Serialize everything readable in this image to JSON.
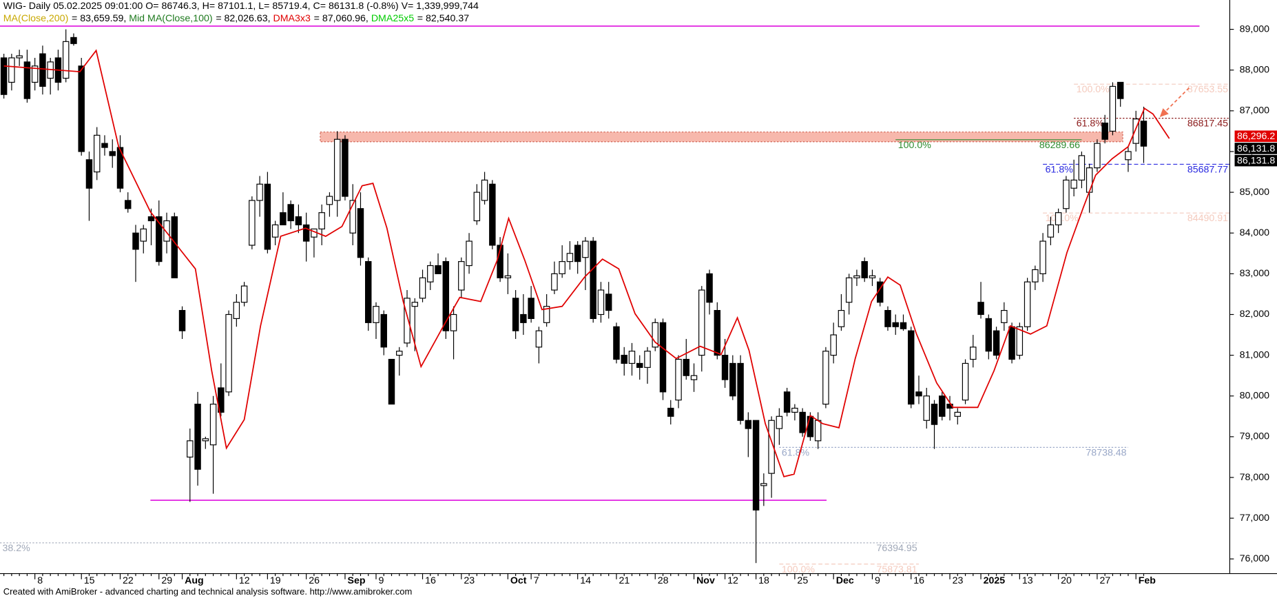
{
  "chart_data": {
    "type": "candlestick",
    "title": "WIG- Daily 05.02.2025 09:01:00 O= 86746.3, H= 87101.1, L= 85719.4, C= 86131.8 (-0.8%) V= 1,339,999,744",
    "indicators": [
      {
        "name": "MA(Close,200)",
        "text": "= 83,659.59,",
        "color": "#c8a800"
      },
      {
        "name": "Mid MA(Close,100)",
        "text": "= 82,026.63,",
        "color": "#1f7a1f"
      },
      {
        "name": "DMA3x3",
        "text": "= 87,060.96,",
        "color": "#e00000"
      },
      {
        "name": "DMA25x5",
        "text": "= 82,540.37",
        "color": "#00cc00"
      }
    ],
    "footer": "Created with AmiBroker - advanced charting and technical analysis software. http://www.amibroker.com",
    "categories": [
      null,
      null,
      null,
      null,
      "8",
      null,
      null,
      null,
      null,
      null,
      "15",
      null,
      null,
      null,
      null,
      "22",
      null,
      null,
      null,
      null,
      "29",
      null,
      null,
      "Aug",
      null,
      null,
      null,
      null,
      null,
      null,
      "12",
      null,
      null,
      null,
      "19",
      null,
      null,
      null,
      null,
      "26",
      null,
      null,
      null,
      null,
      "Sep",
      null,
      null,
      null,
      "9",
      null,
      null,
      null,
      null,
      null,
      "16",
      null,
      null,
      null,
      null,
      "23",
      null,
      null,
      null,
      null,
      null,
      "Oct",
      null,
      null,
      "7",
      null,
      null,
      null,
      null,
      null,
      "14",
      null,
      null,
      null,
      null,
      "21",
      null,
      null,
      null,
      null,
      "28",
      null,
      null,
      null,
      null,
      "Nov",
      null,
      null,
      null,
      "12",
      null,
      null,
      null,
      "18",
      null,
      null,
      null,
      null,
      "25",
      null,
      null,
      null,
      null,
      "Dec",
      null,
      null,
      null,
      null,
      "9",
      null,
      null,
      null,
      null,
      "16",
      null,
      null,
      null,
      null,
      "23",
      null,
      null,
      null,
      "2025",
      null,
      null,
      null,
      null,
      "13",
      null,
      null,
      null,
      null,
      "20",
      null,
      null,
      null,
      null,
      "27",
      null,
      null,
      null,
      null,
      "Feb",
      null
    ],
    "ohlc": [
      [
        88300,
        88400,
        87300,
        87400
      ],
      [
        87700,
        88400,
        87500,
        88300
      ],
      [
        88300,
        88500,
        88100,
        88350
      ],
      [
        88200,
        88500,
        87200,
        87300
      ],
      [
        87700,
        88300,
        87500,
        88100
      ],
      [
        88400,
        88600,
        87400,
        87600
      ],
      [
        87800,
        88300,
        87400,
        88200
      ],
      [
        88300,
        88500,
        87500,
        87700
      ],
      [
        87800,
        89000,
        87700,
        88700
      ],
      [
        88800,
        88900,
        88600,
        88650
      ],
      [
        88100,
        88300,
        85900,
        86000
      ],
      [
        85800,
        86000,
        84300,
        85100
      ],
      [
        85500,
        86600,
        85300,
        86400
      ],
      [
        86200,
        86400,
        85900,
        86100
      ],
      [
        86000,
        86300,
        85600,
        85900
      ],
      [
        86100,
        86400,
        85000,
        85100
      ],
      [
        84800,
        85000,
        84500,
        84600
      ],
      [
        84000,
        84200,
        82800,
        83600
      ],
      [
        83800,
        84200,
        83500,
        84100
      ],
      [
        84400,
        84600,
        83700,
        84300
      ],
      [
        84400,
        84800,
        83200,
        83300
      ],
      [
        83800,
        84500,
        83500,
        84300
      ],
      [
        84400,
        84500,
        82900,
        82900
      ],
      [
        82100,
        82200,
        81400,
        81600
      ],
      [
        78500,
        79200,
        77400,
        78900
      ],
      [
        79800,
        80100,
        77800,
        78200
      ],
      [
        78900,
        79000,
        78700,
        78950
      ],
      [
        78800,
        80000,
        77600,
        79800
      ],
      [
        80200,
        80800,
        79500,
        79600
      ],
      [
        80100,
        82100,
        80000,
        82000
      ],
      [
        81900,
        82500,
        81700,
        82300
      ],
      [
        82300,
        82800,
        82200,
        82700
      ],
      [
        83700,
        84900,
        83600,
        84800
      ],
      [
        84800,
        85400,
        84400,
        85200
      ],
      [
        85200,
        85500,
        83500,
        83600
      ],
      [
        83900,
        84300,
        83700,
        84200
      ],
      [
        84500,
        85000,
        84200,
        84200
      ],
      [
        84700,
        84800,
        84100,
        84300
      ],
      [
        84400,
        84700,
        84000,
        84200
      ],
      [
        84200,
        84500,
        83300,
        83800
      ],
      [
        83900,
        84100,
        83400,
        84100
      ],
      [
        84100,
        84700,
        83700,
        84500
      ],
      [
        84700,
        85000,
        84400,
        84900
      ],
      [
        84800,
        86500,
        84400,
        86300
      ],
      [
        86300,
        86400,
        84800,
        84900
      ],
      [
        84000,
        85200,
        83700,
        84800
      ],
      [
        84600,
        85000,
        83200,
        83400
      ],
      [
        83300,
        83400,
        81600,
        81800
      ],
      [
        81800,
        82300,
        81400,
        82200
      ],
      [
        82000,
        82100,
        81000,
        81200
      ],
      [
        80900,
        80900,
        79800,
        79800
      ],
      [
        81000,
        81200,
        80500,
        81100
      ],
      [
        81300,
        82600,
        81200,
        82400
      ],
      [
        82200,
        82400,
        81100,
        82300
      ],
      [
        82400,
        83100,
        82300,
        82900
      ],
      [
        82800,
        83300,
        82600,
        83200
      ],
      [
        83200,
        83500,
        83000,
        83000
      ],
      [
        83300,
        83400,
        81400,
        81600
      ],
      [
        81600,
        82200,
        80900,
        82000
      ],
      [
        82600,
        83400,
        82400,
        83300
      ],
      [
        83200,
        84000,
        83000,
        83800
      ],
      [
        84300,
        85200,
        84200,
        85000
      ],
      [
        84800,
        85500,
        84700,
        85300
      ],
      [
        85200,
        85300,
        83600,
        83700
      ],
      [
        83700,
        83900,
        82800,
        82900
      ],
      [
        82900,
        83500,
        82500,
        82950
      ],
      [
        82400,
        82600,
        81400,
        81600
      ],
      [
        82000,
        82500,
        81500,
        81800
      ],
      [
        82400,
        82700,
        81800,
        81900
      ],
      [
        81200,
        81700,
        80800,
        81600
      ],
      [
        81800,
        82500,
        81700,
        82200
      ],
      [
        82600,
        83300,
        82500,
        83000
      ],
      [
        83000,
        83700,
        82900,
        83300
      ],
      [
        83300,
        83800,
        83100,
        83500
      ],
      [
        83700,
        83800,
        83000,
        83300
      ],
      [
        83400,
        83900,
        82600,
        83800
      ],
      [
        83800,
        83900,
        81800,
        81900
      ],
      [
        82000,
        82800,
        81800,
        82600
      ],
      [
        82500,
        82800,
        81900,
        82100
      ],
      [
        81700,
        81800,
        80800,
        80900
      ],
      [
        81000,
        81200,
        80500,
        80800
      ],
      [
        80800,
        81300,
        80500,
        81100
      ],
      [
        80800,
        81000,
        80400,
        80700
      ],
      [
        80700,
        81200,
        80300,
        81100
      ],
      [
        81200,
        81900,
        81100,
        81800
      ],
      [
        81800,
        81900,
        79900,
        80100
      ],
      [
        79700,
        79900,
        79300,
        79500
      ],
      [
        79900,
        81000,
        79700,
        80900
      ],
      [
        80900,
        81400,
        80400,
        80500
      ],
      [
        80400,
        80800,
        80100,
        80500
      ],
      [
        81000,
        82700,
        80600,
        82600
      ],
      [
        83000,
        83100,
        82000,
        82300
      ],
      [
        82100,
        82300,
        80900,
        81000
      ],
      [
        81000,
        81400,
        80200,
        80400
      ],
      [
        80800,
        81000,
        79900,
        80000
      ],
      [
        80800,
        81000,
        79300,
        79400
      ],
      [
        79400,
        79600,
        78500,
        79200
      ],
      [
        79400,
        79400,
        75900,
        77200
      ],
      [
        77800,
        78100,
        77300,
        77850
      ],
      [
        78100,
        79500,
        77500,
        79400
      ],
      [
        79200,
        79700,
        78800,
        79500
      ],
      [
        80100,
        80200,
        79500,
        79600
      ],
      [
        79600,
        79800,
        79400,
        79700
      ],
      [
        79600,
        79700,
        79000,
        79100
      ],
      [
        79500,
        79600,
        78900,
        79000
      ],
      [
        78900,
        79600,
        78700,
        79400
      ],
      [
        79800,
        81200,
        79700,
        81100
      ],
      [
        81000,
        81800,
        80800,
        81500
      ],
      [
        81700,
        82500,
        81600,
        82100
      ],
      [
        82300,
        83000,
        82000,
        82900
      ],
      [
        82900,
        83100,
        82700,
        82950
      ],
      [
        83300,
        83400,
        82800,
        82900
      ],
      [
        82900,
        83100,
        82700,
        82950
      ],
      [
        82800,
        82900,
        82200,
        82300
      ],
      [
        82100,
        82200,
        81600,
        81700
      ],
      [
        81800,
        82000,
        81500,
        81700
      ],
      [
        81800,
        82000,
        81600,
        81650
      ],
      [
        81600,
        81700,
        79700,
        79800
      ],
      [
        80100,
        80500,
        79800,
        80000
      ],
      [
        79400,
        80200,
        79200,
        80000
      ],
      [
        79800,
        79900,
        78700,
        79300
      ],
      [
        80000,
        80100,
        79400,
        79500
      ],
      [
        79800,
        80000,
        79400,
        79700
      ],
      [
        79500,
        79700,
        79300,
        79600
      ],
      [
        79900,
        80900,
        79800,
        80800
      ],
      [
        80900,
        81500,
        80700,
        81200
      ],
      [
        82300,
        82800,
        81900,
        82000
      ],
      [
        81900,
        82000,
        80900,
        81100
      ],
      [
        81600,
        81700,
        80900,
        81000
      ],
      [
        81800,
        82300,
        81600,
        82100
      ],
      [
        81700,
        81800,
        80800,
        80900
      ],
      [
        81000,
        81800,
        80900,
        81700
      ],
      [
        81700,
        82900,
        81600,
        82800
      ],
      [
        82800,
        83200,
        82600,
        83100
      ],
      [
        83000,
        84000,
        82800,
        83800
      ],
      [
        83900,
        84400,
        83700,
        84200
      ],
      [
        84200,
        84600,
        84000,
        84500
      ],
      [
        84600,
        85400,
        84500,
        85300
      ],
      [
        85100,
        85800,
        84900,
        85300
      ],
      [
        85300,
        86000,
        85100,
        85900
      ],
      [
        85000,
        85700,
        84500,
        85600
      ],
      [
        85600,
        86300,
        85500,
        86200
      ],
      [
        86700,
        86900,
        86200,
        86300
      ],
      [
        86500,
        87700,
        86400,
        87600
      ],
      [
        87700,
        87700,
        87100,
        87300
      ],
      [
        85800,
        86100,
        85500,
        86000
      ],
      [
        86200,
        87000,
        86000,
        86800
      ],
      [
        86746.3,
        87101.1,
        85719.4,
        86131.8
      ]
    ],
    "up_color": "#ffffff",
    "down_color": "#000000",
    "dma_line": {
      "color": "#e00000",
      "x": [
        0,
        9.8,
        11.9,
        14.8,
        18.9,
        21.8,
        24.7,
        26.8,
        28.7,
        31,
        33.1,
        35.7,
        38.9,
        41.5,
        43.6,
        46.2,
        47.6,
        49.4,
        51.5,
        53.8,
        56.7,
        58.8,
        61.5,
        63.6,
        65.1,
        67.2,
        69.4,
        72,
        74.9,
        77.2,
        79.3,
        81.4,
        84,
        86.7,
        89.8,
        92.5,
        94.6,
        96.1,
        98.2,
        100.6,
        101.9,
        104,
        105.6,
        107.7,
        109.8,
        111.9,
        114,
        115.6,
        117.7,
        120.3,
        122.4,
        125.6,
        127.7,
        129.8,
        132.4,
        134.5,
        137.1,
        139.2,
        140.8,
        142.9,
        145,
        147.1,
        148.2,
        150.3
      ],
      "values": [
        88100,
        87960,
        88480,
        86120,
        84520,
        83820,
        83120,
        80620,
        78720,
        79420,
        81720,
        83920,
        84120,
        83920,
        84160,
        85160,
        85220,
        84120,
        82320,
        80720,
        81720,
        82420,
        82320,
        83320,
        84360,
        83320,
        82120,
        82200,
        82920,
        83360,
        83120,
        82020,
        81320,
        80920,
        81220,
        81020,
        81920,
        81120,
        79320,
        78020,
        78080,
        79520,
        79320,
        79220,
        80920,
        82320,
        82920,
        82720,
        81520,
        80320,
        79720,
        79720,
        80620,
        81720,
        81520,
        81720,
        83520,
        84620,
        85420,
        85820,
        86120,
        87060,
        86920,
        86320
      ]
    },
    "hlines": [
      {
        "value": 89080,
        "from": -0.5,
        "to": 154.2,
        "color": "#e020e0"
      },
      {
        "value": 77440,
        "from": 18.9,
        "to": 106.1,
        "color": "#e020e0"
      }
    ],
    "zone": {
      "low": 86240,
      "high": 86480,
      "from": 40.8,
      "to": 144.3,
      "color": "#f4a090"
    },
    "levels": [
      {
        "value": 87653.55,
        "pct": "100.0%",
        "color": "#f4cabd",
        "from": 138,
        "style": "dashed"
      },
      {
        "value": 86817.45,
        "pct": "61.8%",
        "color": "#8b1a1a",
        "from": 138,
        "style": "dotted"
      },
      {
        "value": 86289.66,
        "pct": "100.0%",
        "color": "#2e8b2e",
        "from": 115,
        "to": 139,
        "style": "solid"
      },
      {
        "value": 85687.77,
        "pct": "61.8%",
        "color": "#2a2ae0",
        "from": 134,
        "style": "dashed"
      },
      {
        "value": 84490.91,
        "pct": "100.0%",
        "color": "#f4cabd",
        "from": 134,
        "style": "dashed"
      },
      {
        "value": 78738.48,
        "pct": "61.8%",
        "color": "#9aa8c8",
        "from": 100,
        "to": 145,
        "style": "dotted"
      },
      {
        "value": 76394.95,
        "pct": "38.2%",
        "color": "#a0a8b8",
        "from": -0.5,
        "to": 118,
        "style": "dotted"
      },
      {
        "value": 75873.81,
        "pct": "100.0%",
        "color": "#f4cabd",
        "from": 100,
        "to": 118,
        "style": "dashed"
      }
    ],
    "price_marks": [
      {
        "value": 86296.2,
        "label": "86,296.2",
        "color": "#e00000"
      },
      {
        "value": 86131.8,
        "label": "86,131.8",
        "color": "#000000"
      },
      {
        "value": 86131.8,
        "label": "86,131.8",
        "color": "#000000"
      }
    ],
    "xlim": [
      -0.5,
      158.1
    ],
    "ylim": [
      75640,
      89720
    ],
    "yticks": [
      {
        "value": 76000,
        "label": "76,000"
      },
      {
        "value": 77000,
        "label": "77,000"
      },
      {
        "value": 78000,
        "label": "78,000"
      },
      {
        "value": 79000,
        "label": "79,000"
      },
      {
        "value": 80000,
        "label": "80,000"
      },
      {
        "value": 81000,
        "label": "81,000"
      },
      {
        "value": 82000,
        "label": "82,000"
      },
      {
        "value": 83000,
        "label": "83,000"
      },
      {
        "value": 84000,
        "label": "84,000"
      },
      {
        "value": 85000,
        "label": "85,000"
      },
      {
        "value": 86000,
        "label": "86,000"
      },
      {
        "value": 87000,
        "label": "87,000"
      },
      {
        "value": 88000,
        "label": "88,000"
      },
      {
        "value": 89000,
        "label": "89,000"
      }
    ]
  }
}
